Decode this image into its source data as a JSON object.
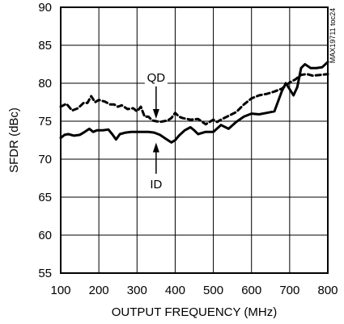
{
  "chart_data": {
    "type": "line",
    "xlabel": "OUTPUT FREQUENCY (MHz)",
    "ylabel": "SFDR (dBc)",
    "watermark": "MAX19711 toc24",
    "xlim": [
      100,
      800
    ],
    "ylim": [
      55,
      90
    ],
    "x_ticks": [
      "100",
      "200",
      "300",
      "400",
      "500",
      "600",
      "700",
      "800"
    ],
    "y_ticks": [
      "55",
      "60",
      "65",
      "70",
      "75",
      "80",
      "85",
      "90"
    ],
    "grid": true,
    "line_color": "#000000",
    "annotations": [
      {
        "label": "QD",
        "series": "QD",
        "arrow_x": 350,
        "arrow_y": 75.0
      },
      {
        "label": "ID",
        "series": "ID",
        "arrow_x": 350,
        "arrow_y": 72.5
      }
    ],
    "series": [
      {
        "name": "QD",
        "style": "dashed",
        "x": [
          100,
          115,
          130,
          145,
          160,
          170,
          180,
          190,
          200,
          215,
          230,
          240,
          250,
          260,
          275,
          290,
          300,
          310,
          320,
          330,
          340,
          350,
          360,
          370,
          380,
          390,
          400,
          410,
          420,
          440,
          460,
          480,
          500,
          510,
          520,
          540,
          560,
          580,
          600,
          620,
          640,
          660,
          680,
          700,
          715,
          730,
          745,
          760,
          780,
          800
        ],
        "y": [
          76.9,
          77.3,
          76.4,
          76.7,
          77.4,
          77.4,
          78.3,
          77.5,
          77.8,
          77.6,
          77.2,
          77.2,
          76.9,
          77.1,
          76.6,
          76.7,
          76.3,
          76.9,
          75.6,
          75.6,
          75.1,
          75.0,
          74.9,
          75.0,
          75.1,
          75.4,
          76.1,
          75.6,
          75.4,
          75.2,
          75.3,
          74.6,
          75.2,
          74.9,
          75.2,
          75.7,
          76.2,
          77.2,
          78.0,
          78.4,
          78.6,
          78.9,
          79.3,
          80.1,
          80.5,
          81.1,
          81.2,
          81.0,
          81.1,
          81.2
        ]
      },
      {
        "name": "ID",
        "style": "solid",
        "x": [
          100,
          110,
          120,
          135,
          150,
          160,
          175,
          185,
          195,
          210,
          225,
          235,
          245,
          255,
          270,
          285,
          300,
          315,
          330,
          345,
          360,
          375,
          390,
          400,
          410,
          425,
          440,
          450,
          460,
          480,
          500,
          520,
          540,
          560,
          580,
          600,
          620,
          640,
          660,
          680,
          690,
          700,
          710,
          720,
          730,
          740,
          755,
          770,
          785,
          800
        ],
        "y": [
          72.8,
          73.2,
          73.3,
          73.1,
          73.2,
          73.5,
          74.0,
          73.6,
          73.8,
          73.8,
          73.9,
          73.3,
          72.6,
          73.3,
          73.5,
          73.6,
          73.6,
          73.6,
          73.6,
          73.5,
          73.2,
          72.7,
          72.2,
          72.5,
          73.1,
          73.8,
          74.2,
          73.8,
          73.3,
          73.6,
          73.6,
          74.5,
          74.0,
          74.9,
          75.6,
          76.0,
          75.9,
          76.1,
          76.3,
          79.0,
          80.0,
          79.2,
          78.4,
          79.5,
          82.0,
          82.5,
          82.0,
          82.0,
          82.1,
          82.8
        ]
      }
    ]
  }
}
